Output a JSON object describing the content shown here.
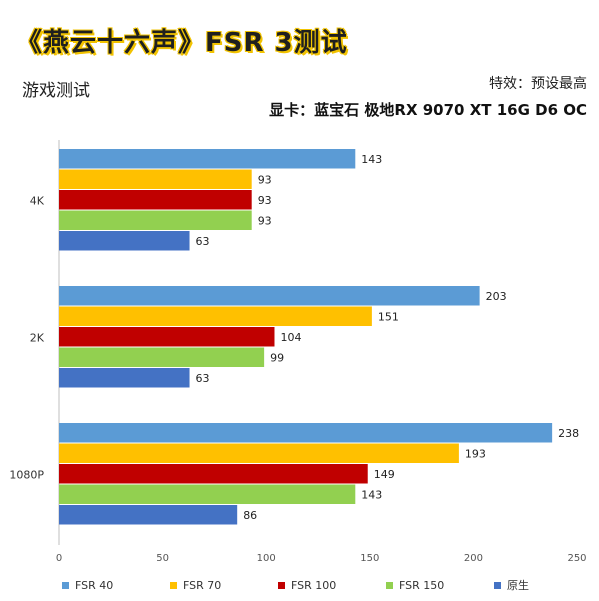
{
  "header": {
    "banner_title": "《燕云十六声》FSR 3测试",
    "subtitle": "游戏测试",
    "effects": "特效：预设最高",
    "gpu": "显卡：蓝宝石 极地RX 9070 XT 16G D6 OC"
  },
  "chart_data": {
    "type": "bar",
    "orientation": "horizontal",
    "categories": [
      "4K",
      "2K",
      "1080P"
    ],
    "series": [
      {
        "name": "FSR 40",
        "color": "#5b9bd5",
        "values": [
          143,
          203,
          238
        ]
      },
      {
        "name": "FSR 70",
        "color": "#ffc000",
        "values": [
          93,
          151,
          193
        ]
      },
      {
        "name": "FSR 100",
        "color": "#c00000",
        "values": [
          93,
          104,
          149
        ]
      },
      {
        "name": "FSR 150",
        "color": "#92d050",
        "values": [
          93,
          99,
          143
        ]
      },
      {
        "name": "原生",
        "color": "#4472c4",
        "values": [
          63,
          63,
          86
        ]
      }
    ],
    "xlim": [
      0,
      250
    ],
    "xticks": [
      0,
      50,
      100,
      150,
      200,
      250
    ],
    "grid": false,
    "legend": "bottom"
  }
}
